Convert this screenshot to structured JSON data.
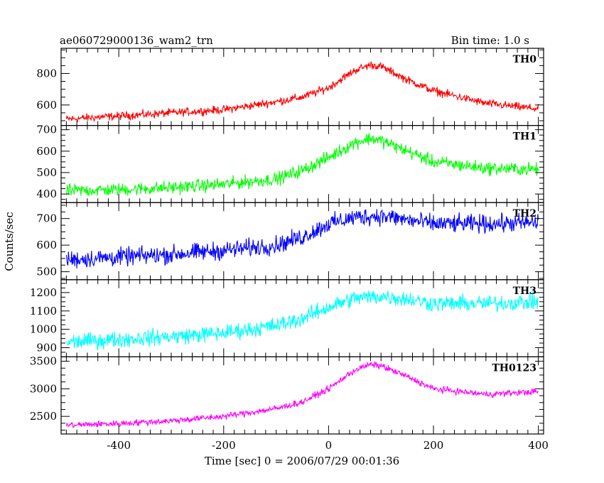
{
  "chart_data": {
    "type": "line",
    "title": "ae060729000136_wam2_trn",
    "subtitle": "Bin time: 1.0 s",
    "xlabel": "Time [sec] 0 = 2006/07/29 00:01:36",
    "ylabel": "Counts/sec",
    "xlim": [
      -510,
      410
    ],
    "x_ticks": [
      "-400",
      "-200",
      "0",
      "200",
      "400"
    ],
    "x_tick_values": [
      -400,
      -200,
      0,
      200,
      400
    ],
    "grid": false,
    "panels": [
      {
        "name": "TH0",
        "color": "#ff0000",
        "ylim": [
          470,
          960
        ],
        "y_ticks": [
          "600",
          "800"
        ],
        "y_tick_values": [
          600,
          800
        ],
        "x": [
          -500,
          -400,
          -300,
          -200,
          -100,
          -50,
          0,
          50,
          80,
          100,
          150,
          200,
          300,
          400
        ],
        "y": [
          510,
          530,
          550,
          570,
          620,
          650,
          710,
          820,
          855,
          845,
          760,
          690,
          610,
          575
        ],
        "noise": 38
      },
      {
        "name": "TH1",
        "color": "#00ff00",
        "ylim": [
          360,
          720
        ],
        "y_ticks": [
          "400",
          "500",
          "600",
          "700"
        ],
        "y_tick_values": [
          400,
          500,
          600,
          700
        ],
        "x": [
          -500,
          -400,
          -300,
          -200,
          -100,
          -50,
          0,
          50,
          80,
          100,
          150,
          200,
          300,
          400
        ],
        "y": [
          415,
          420,
          430,
          445,
          470,
          510,
          570,
          640,
          660,
          650,
          600,
          550,
          520,
          515
        ],
        "noise": 45
      },
      {
        "name": "TH2",
        "color": "#0000ff",
        "ylim": [
          470,
          760
        ],
        "y_ticks": [
          "500",
          "600",
          "700"
        ],
        "y_tick_values": [
          500,
          600,
          700
        ],
        "x": [
          -500,
          -400,
          -300,
          -200,
          -100,
          -50,
          0,
          50,
          100,
          150,
          200,
          300,
          400
        ],
        "y": [
          545,
          555,
          565,
          580,
          600,
          630,
          680,
          705,
          710,
          695,
          680,
          680,
          685
        ],
        "noise": 50
      },
      {
        "name": "TH3",
        "color": "#00ffff",
        "ylim": [
          850,
          1270
        ],
        "y_ticks": [
          "900",
          "1000",
          "1100",
          "1200"
        ],
        "y_tick_values": [
          900,
          1000,
          1100,
          1200
        ],
        "x": [
          -500,
          -400,
          -300,
          -200,
          -100,
          -50,
          0,
          50,
          100,
          150,
          200,
          300,
          400
        ],
        "y": [
          930,
          945,
          960,
          980,
          1020,
          1060,
          1120,
          1170,
          1180,
          1165,
          1140,
          1140,
          1150
        ],
        "noise": 65
      },
      {
        "name": "TH0123",
        "color": "#ff00ff",
        "ylim": [
          2180,
          3580
        ],
        "y_ticks": [
          "2500",
          "3000",
          "3500"
        ],
        "y_tick_values": [
          2500,
          3000,
          3500
        ],
        "x": [
          -500,
          -400,
          -300,
          -200,
          -100,
          -50,
          0,
          50,
          80,
          100,
          150,
          200,
          300,
          400
        ],
        "y": [
          2340,
          2370,
          2420,
          2500,
          2640,
          2760,
          3000,
          3340,
          3440,
          3420,
          3220,
          3000,
          2900,
          2950
        ],
        "noise": 85
      }
    ]
  }
}
